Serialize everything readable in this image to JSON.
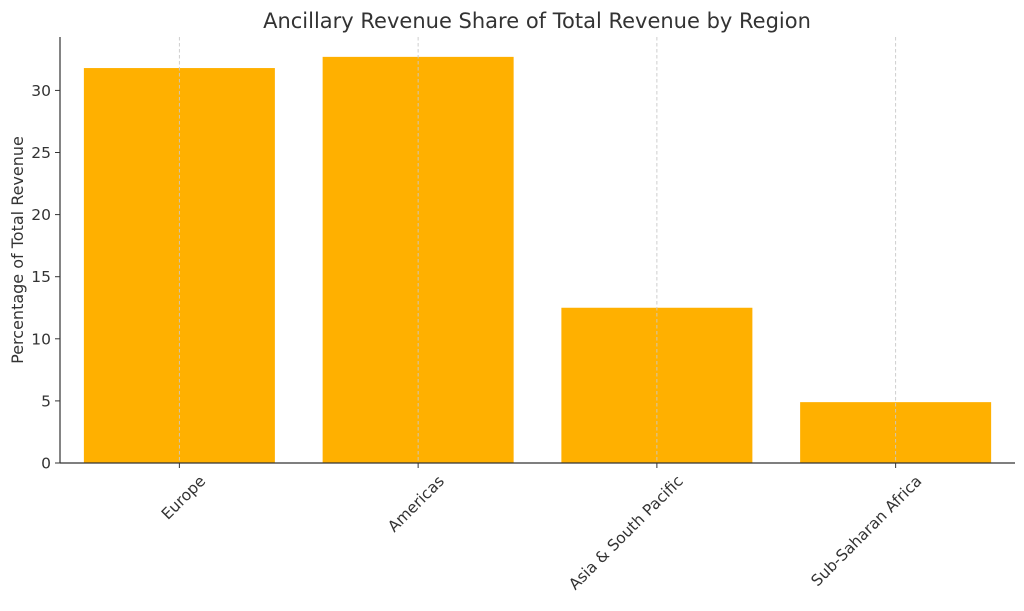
{
  "chart_data": {
    "type": "bar",
    "title": "Ancillary Revenue Share of Total Revenue by Region",
    "xlabel": "",
    "ylabel": "Percentage of Total Revenue",
    "categories": [
      "Europe",
      "Americas",
      "Asia & South Pacific",
      "Sub-Saharan Africa"
    ],
    "values": [
      31.8,
      32.7,
      12.5,
      4.9
    ],
    "ylim": [
      0,
      34.3
    ],
    "yticks": [
      0,
      5,
      10,
      15,
      20,
      25,
      30
    ],
    "bar_color": "#ffb000",
    "grid": "x-dashed",
    "legend": "none"
  }
}
